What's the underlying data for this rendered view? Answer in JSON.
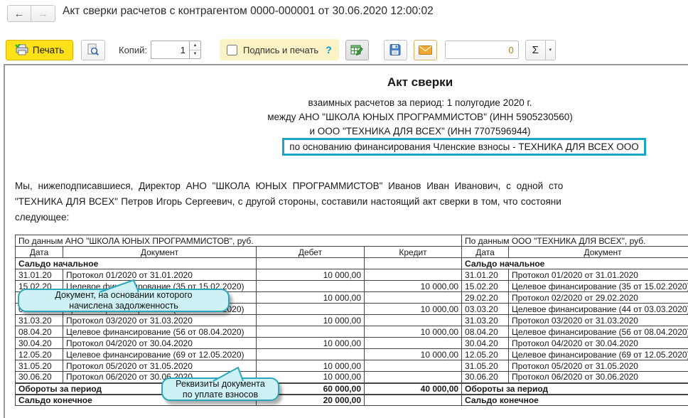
{
  "window": {
    "title": "Акт сверки расчетов с контрагентом 0000-000001 от 30.06.2020 12:00:02"
  },
  "toolbar": {
    "print_label": "Печать",
    "copies_label": "Копий:",
    "copies_value": "1",
    "sign_print_label": "Подпись и печать",
    "help_label": "?",
    "sum_field_value": "0",
    "sigma_label": "Σ",
    "sigma_arrow": "▾",
    "spin_up": "▲",
    "spin_down": "▼",
    "back_arrow": "←",
    "forward_arrow": "→"
  },
  "document": {
    "title": "Акт сверки",
    "period_line": "взаимных расчетов за период: 1 полугодие 2020 г.",
    "party1_line": "между АНО \"ШКОЛА ЮНЫХ ПРОГРАММИСТОВ\" (ИНН 5905230560)",
    "party2_line": "и ООО \"ТЕХНИКА ДЛЯ ВСЕХ\" (ИНН 7707596944)",
    "basis_line": "по основанию финансирования Членские взносы - ТЕХНИКА ДЛЯ ВСЕХ ООО",
    "intro_line1": "Мы, нижеподписавшиеся, Директор АНО \"ШКОЛА ЮНЫХ ПРОГРАММИСТОВ\" Иванов Иван Иванович, с одной сто",
    "intro_line2": "\"ТЕХНИКА ДЛЯ ВСЕХ\" Петров Игорь Сергеевич, с другой стороны, составили настоящий акт сверки в том, что состояни",
    "intro_line3": "следующее:"
  },
  "table": {
    "left_caption": "По данным АНО \"ШКОЛА ЮНЫХ ПРОГРАММИСТОВ\", руб.",
    "right_caption": "По данным ООО \"ТЕХНИКА ДЛЯ ВСЕХ\", руб.",
    "headers": {
      "date": "Дата",
      "doc": "Документ",
      "debit": "Дебет",
      "credit": "Кредит"
    },
    "opening_label": "Сальдо начальное",
    "rows": [
      {
        "date": "31.01.20",
        "doc": "Протокол 01/2020 от 31.01.2020",
        "debit": "10 000,00",
        "credit": ""
      },
      {
        "date": "15.02.20",
        "doc": "Целевое финансирование (35 от 15.02.2020)",
        "debit": "",
        "credit": "10 000,00"
      },
      {
        "date": "29.02.20",
        "doc": "Протокол 02/2020 от 29.02.2020",
        "debit": "10 000,00",
        "credit": ""
      },
      {
        "date": "03.03.20",
        "doc": "Целевое финансирование (44 от 03.03.2020)",
        "debit": "",
        "credit": "10 000,00"
      },
      {
        "date": "31.03.20",
        "doc": "Протокол 03/2020 от 31.03.2020",
        "debit": "10 000,00",
        "credit": ""
      },
      {
        "date": "08.04.20",
        "doc": "Целевое финансирование (56 от 08.04.2020)",
        "debit": "",
        "credit": "10 000,00"
      },
      {
        "date": "30.04.20",
        "doc": "Протокол 04/2020 от 30.04.2020",
        "debit": "10 000,00",
        "credit": ""
      },
      {
        "date": "12.05.20",
        "doc": "Целевое финансирование (69 от 12.05.2020)",
        "debit": "",
        "credit": "10 000,00"
      },
      {
        "date": "31.05.20",
        "doc": "Протокол 05/2020 от 31.05.2020",
        "debit": "10 000,00",
        "credit": ""
      },
      {
        "date": "30.06.20",
        "doc": "Протокол 06/2020 от 30.06.2020",
        "debit": "10 000,00",
        "credit": ""
      }
    ],
    "turnover_label": "Обороты за период",
    "turnover_debit": "60 000,00",
    "turnover_credit": "40 000,00",
    "closing_label": "Сальдо конечное",
    "closing_debit": "20 000,00"
  },
  "callouts": [
    {
      "line1": "Документ, на основании которого",
      "line2": "начислена задолженность"
    },
    {
      "line1": "Реквизиты документа",
      "line2": "по уплате взносов"
    }
  ],
  "colors": {
    "print_button": "#FFE11A",
    "sign_panel": "#FBF2C6",
    "help_link": "#0098DB",
    "highlight_border": "#18A7C6",
    "callout_fill": "#CDF1F4",
    "callout_border": "#2BA6BB",
    "field_value": "#B87A00"
  }
}
